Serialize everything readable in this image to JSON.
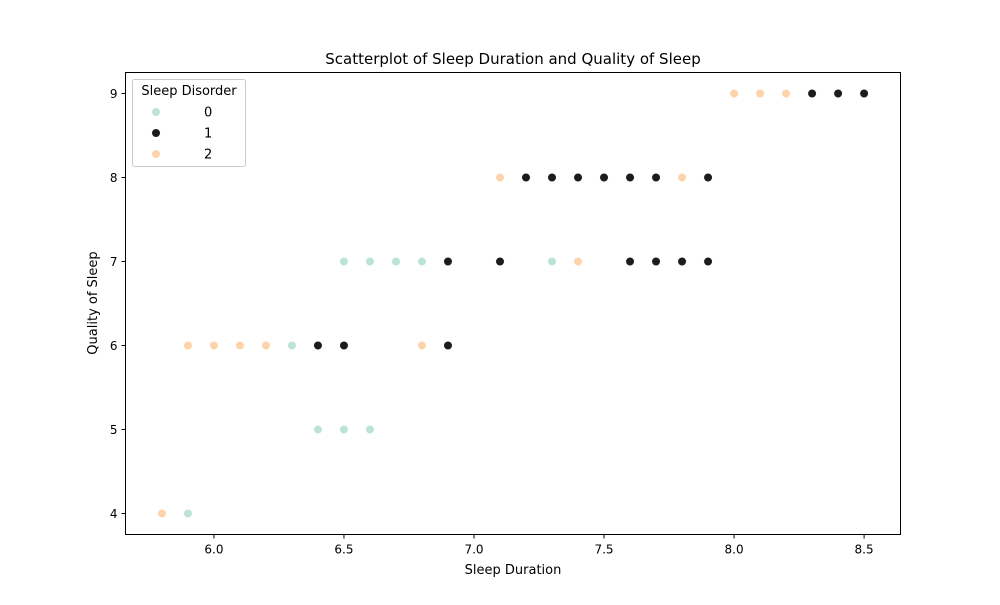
{
  "chart_data": {
    "type": "scatter",
    "title": "Scatterplot of Sleep Duration and Quality of Sleep",
    "xlabel": "Sleep Duration",
    "ylabel": "Quality of Sleep",
    "xlim": [
      5.66,
      8.64
    ],
    "ylim": [
      3.75,
      9.25
    ],
    "xticks": [
      "6.0",
      "6.5",
      "7.0",
      "7.5",
      "8.0",
      "8.5"
    ],
    "yticks": [
      "4",
      "5",
      "6",
      "7",
      "8",
      "9"
    ],
    "grid": false,
    "legend": {
      "title": "Sleep Disorder",
      "position": "top-left"
    },
    "series": [
      {
        "name": "0",
        "color": "#bde3d4",
        "points": [
          [
            5.9,
            4
          ],
          [
            6.3,
            6
          ],
          [
            6.4,
            5
          ],
          [
            6.5,
            5
          ],
          [
            6.6,
            5
          ],
          [
            6.5,
            7
          ],
          [
            6.6,
            7
          ],
          [
            6.7,
            7
          ],
          [
            6.8,
            7
          ],
          [
            7.3,
            7
          ]
        ]
      },
      {
        "name": "1",
        "color": "#1c1c1c",
        "points": [
          [
            6.4,
            6
          ],
          [
            6.5,
            6
          ],
          [
            6.9,
            6
          ],
          [
            6.9,
            7
          ],
          [
            7.1,
            7
          ],
          [
            7.6,
            7
          ],
          [
            7.7,
            7
          ],
          [
            7.8,
            7
          ],
          [
            7.9,
            7
          ],
          [
            7.2,
            8
          ],
          [
            7.3,
            8
          ],
          [
            7.4,
            8
          ],
          [
            7.5,
            8
          ],
          [
            7.6,
            8
          ],
          [
            7.7,
            8
          ],
          [
            7.9,
            8
          ],
          [
            8.3,
            9
          ],
          [
            8.4,
            9
          ],
          [
            8.5,
            9
          ]
        ]
      },
      {
        "name": "2",
        "color": "#fcd3aa",
        "points": [
          [
            5.8,
            4
          ],
          [
            5.9,
            6
          ],
          [
            6.0,
            6
          ],
          [
            6.1,
            6
          ],
          [
            6.2,
            6
          ],
          [
            6.8,
            6
          ],
          [
            7.4,
            7
          ],
          [
            7.1,
            8
          ],
          [
            7.8,
            8
          ],
          [
            8.0,
            9
          ],
          [
            8.1,
            9
          ],
          [
            8.2,
            9
          ]
        ]
      }
    ]
  }
}
